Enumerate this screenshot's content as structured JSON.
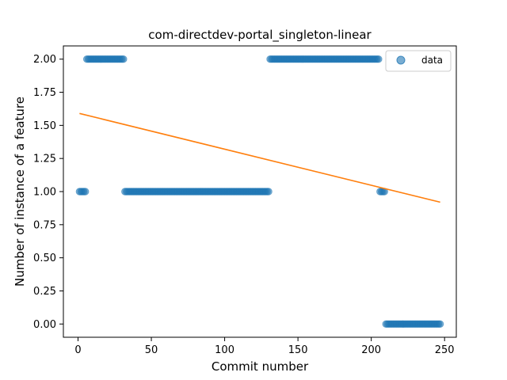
{
  "chart_data": {
    "type": "scatter",
    "title": "com-directdev-portal_singleton-linear",
    "xlabel": "Commit number",
    "ylabel": "Number of instance of a feature",
    "xlim": [
      -10,
      258
    ],
    "ylim": [
      -0.1,
      2.1
    ],
    "xticks": [
      0,
      50,
      100,
      150,
      200,
      250
    ],
    "yticks": [
      0.0,
      0.25,
      0.5,
      0.75,
      1.0,
      1.25,
      1.5,
      1.75,
      2.0
    ],
    "xtick_labels": [
      "0",
      "50",
      "100",
      "150",
      "200",
      "250"
    ],
    "ytick_labels": [
      "0.00",
      "0.25",
      "0.50",
      "0.75",
      "1.00",
      "1.25",
      "1.50",
      "1.75",
      "2.00"
    ],
    "grid": false,
    "legend_position": "top-right",
    "series": [
      {
        "name": "data",
        "kind": "scatter",
        "color": "#1f77b4",
        "segments": [
          {
            "x_start": 1,
            "x_end": 5,
            "y": 1
          },
          {
            "x_start": 6,
            "x_end": 31,
            "y": 2
          },
          {
            "x_start": 32,
            "x_end": 130,
            "y": 1
          },
          {
            "x_start": 131,
            "x_end": 205,
            "y": 2
          },
          {
            "x_start": 206,
            "x_end": 209,
            "y": 1
          },
          {
            "x_start": 210,
            "x_end": 247,
            "y": 0
          }
        ]
      },
      {
        "kind": "line",
        "color": "#ff7f0e",
        "x": [
          1,
          247
        ],
        "y": [
          1.59,
          0.92
        ]
      }
    ]
  }
}
